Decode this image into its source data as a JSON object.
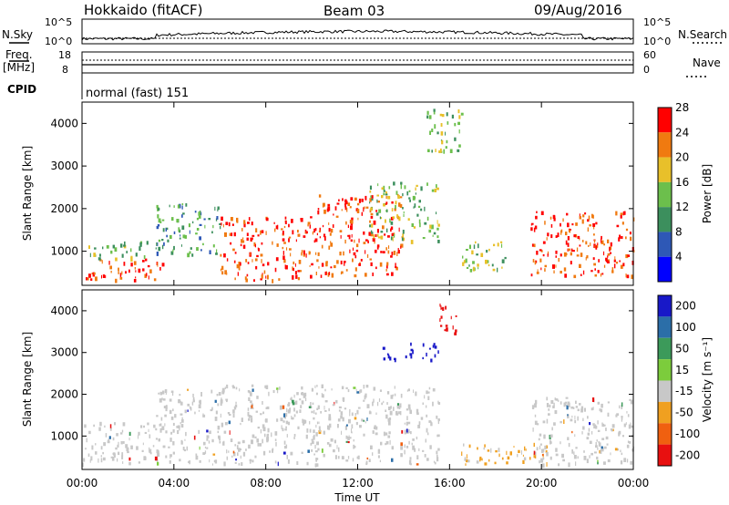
{
  "header": {
    "station": "Hokkaido (fitACF)",
    "beam": "Beam 03",
    "date": "09/Aug/2016"
  },
  "summary_panels": {
    "nsky_label": "N.Sky",
    "nsearch_label": "N.Search",
    "nsky_ticks": [
      "10^5",
      "10^0"
    ],
    "nsearch_ticks": [
      "10^5",
      "10^0"
    ],
    "freq_label_1": "Freq.",
    "freq_label_2": "[MHz]",
    "freq_ticks": [
      "18",
      "8"
    ],
    "nave_label": "Nave",
    "nave_ticks": [
      "60",
      "0"
    ],
    "cpid_label": "CPID",
    "cpid_value": "normal (fast) 151"
  },
  "chart_data": [
    {
      "type": "heatmap",
      "name": "power",
      "xlabel": "",
      "ylabel": "Slant Range [km]",
      "x_range_hours": [
        0,
        24
      ],
      "ylim": [
        200,
        4500
      ],
      "yticks": [
        "1000",
        "2000",
        "3000",
        "4000"
      ],
      "colorbar": {
        "label": "Power [dB]",
        "ticks": [
          "4",
          "8",
          "12",
          "16",
          "20",
          "24",
          "28"
        ],
        "colors": [
          "#0000ff",
          "#2e58b6",
          "#3c8f5d",
          "#6cbf4c",
          "#e8c02a",
          "#f07a10",
          "#ff0000"
        ]
      },
      "regions": [
        {
          "t0": 0.0,
          "t1": 3.6,
          "r0": 300,
          "r1": 800,
          "level": "high"
        },
        {
          "t0": 0.2,
          "t1": 3.0,
          "r0": 800,
          "r1": 1200,
          "level": "mid"
        },
        {
          "t0": 3.2,
          "t1": 6.0,
          "r0": 900,
          "r1": 2100,
          "level": "low"
        },
        {
          "t0": 6.0,
          "t1": 10.0,
          "r0": 300,
          "r1": 1800,
          "level": "high"
        },
        {
          "t0": 10.0,
          "t1": 14.0,
          "r0": 400,
          "r1": 2300,
          "level": "high"
        },
        {
          "t0": 12.5,
          "t1": 15.5,
          "r0": 1200,
          "r1": 2600,
          "level": "mid"
        },
        {
          "t0": 15.0,
          "t1": 16.5,
          "r0": 3300,
          "r1": 4300,
          "level": "mid"
        },
        {
          "t0": 16.5,
          "t1": 18.5,
          "r0": 500,
          "r1": 1200,
          "level": "mid"
        },
        {
          "t0": 19.5,
          "t1": 24.0,
          "r0": 400,
          "r1": 1900,
          "level": "high"
        }
      ]
    },
    {
      "type": "heatmap",
      "name": "velocity",
      "xlabel": "Time UT",
      "ylabel": "Slant Range [km]",
      "x_range_hours": [
        0,
        24
      ],
      "xticks": [
        "00:00",
        "04:00",
        "08:00",
        "12:00",
        "16:00",
        "20:00",
        "00:00"
      ],
      "ylim": [
        200,
        4500
      ],
      "yticks": [
        "1000",
        "2000",
        "3000",
        "4000"
      ],
      "colorbar": {
        "label": "Velocity [m s⁻¹]",
        "ticks": [
          "200",
          "100",
          "50",
          "15",
          "-15",
          "-50",
          "-100",
          "-200"
        ],
        "colors": [
          "#1818c8",
          "#2b6ea8",
          "#3c9a5a",
          "#7ccc3c",
          "#c8c8c8",
          "#f0a020",
          "#f06010",
          "#e81010"
        ]
      },
      "regions": [
        {
          "t0": 0.0,
          "t1": 6.0,
          "r0": 300,
          "r1": 1300,
          "level": "grey"
        },
        {
          "t0": 3.2,
          "t1": 6.0,
          "r0": 1300,
          "r1": 2100,
          "level": "grey"
        },
        {
          "t0": 6.0,
          "t1": 15.5,
          "r0": 300,
          "r1": 2200,
          "level": "grey"
        },
        {
          "t0": 13.0,
          "t1": 15.5,
          "r0": 2800,
          "r1": 3200,
          "level": "blue"
        },
        {
          "t0": 15.5,
          "t1": 16.3,
          "r0": 3400,
          "r1": 4200,
          "level": "red"
        },
        {
          "t0": 16.5,
          "t1": 20.5,
          "r0": 300,
          "r1": 800,
          "level": "orange"
        },
        {
          "t0": 19.5,
          "t1": 24.0,
          "r0": 300,
          "r1": 1900,
          "level": "grey"
        }
      ]
    }
  ]
}
